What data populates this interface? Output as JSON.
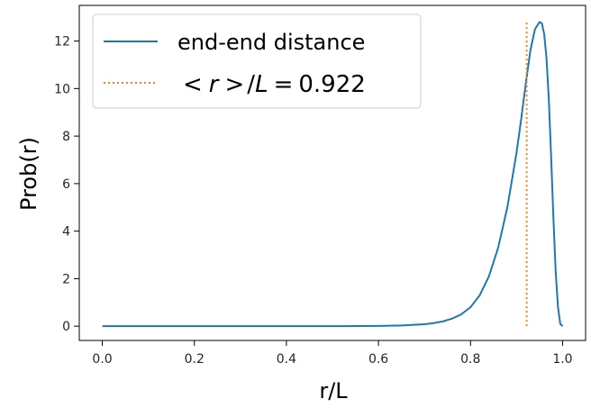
{
  "chart_data": {
    "type": "line",
    "xlabel": "r/L",
    "ylabel": "Prob(r)",
    "xlim": [
      -0.05,
      1.05
    ],
    "ylim": [
      -0.6,
      13.5
    ],
    "xticks": [
      0.0,
      0.2,
      0.4,
      0.6,
      0.8,
      1.0
    ],
    "xtick_labels": [
      "0.0",
      "0.2",
      "0.4",
      "0.6",
      "0.8",
      "1.0"
    ],
    "yticks": [
      0,
      2,
      4,
      6,
      8,
      10,
      12
    ],
    "ytick_labels": [
      "0",
      "2",
      "4",
      "6",
      "8",
      "10",
      "12"
    ],
    "grid": false,
    "legend_position": "top-left",
    "series": [
      {
        "name": "end-end distance",
        "style": "solid",
        "color": "#1f77b4",
        "x": [
          0.0,
          0.1,
          0.2,
          0.3,
          0.4,
          0.5,
          0.6,
          0.65,
          0.7,
          0.72,
          0.74,
          0.76,
          0.78,
          0.8,
          0.82,
          0.84,
          0.86,
          0.88,
          0.9,
          0.91,
          0.92,
          0.93,
          0.94,
          0.95,
          0.955,
          0.96,
          0.965,
          0.97,
          0.975,
          0.98,
          0.985,
          0.99,
          0.995,
          1.0
        ],
        "y": [
          0.0,
          0.0,
          0.0,
          0.0,
          0.0,
          0.0,
          0.01,
          0.03,
          0.08,
          0.13,
          0.2,
          0.32,
          0.5,
          0.8,
          1.3,
          2.1,
          3.3,
          5.0,
          7.3,
          8.7,
          10.2,
          11.6,
          12.5,
          12.8,
          12.75,
          12.3,
          11.3,
          9.6,
          7.2,
          4.6,
          2.3,
          0.8,
          0.1,
          0.0
        ]
      },
      {
        "name_parts": [
          "<",
          "r",
          ">",
          "/",
          "L",
          "=",
          "0.922"
        ],
        "style": "dotted",
        "color": "#ff7f0e",
        "x": [
          0.922,
          0.922
        ],
        "y": [
          0.0,
          12.9
        ]
      }
    ]
  }
}
